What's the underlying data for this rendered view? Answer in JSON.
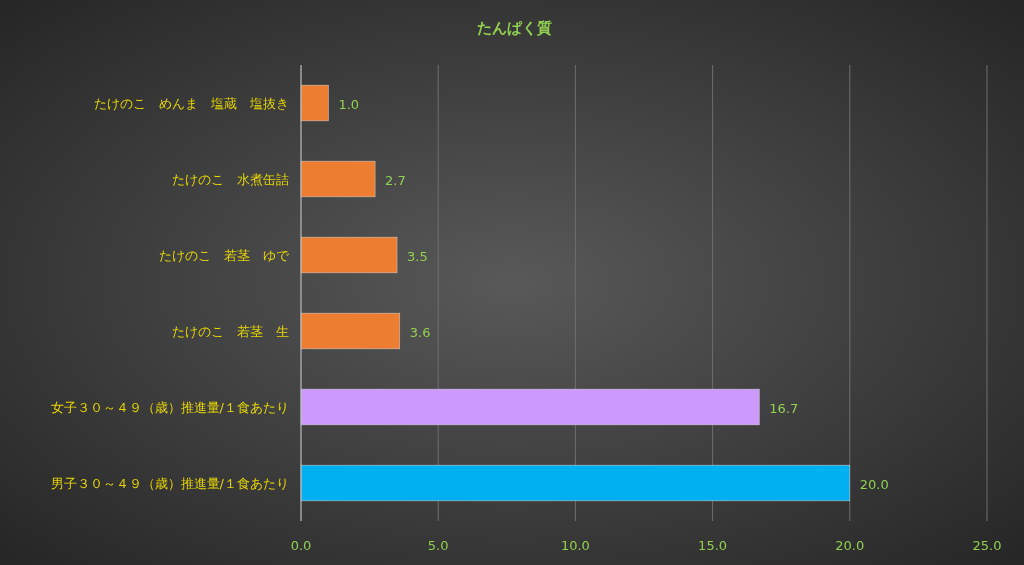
{
  "chart_data": {
    "type": "bar",
    "orientation": "horizontal",
    "title": "たんぱく質",
    "categories": [
      "たけのこ　めんま　塩蔵　塩抜き",
      "たけのこ　水煮缶詰",
      "たけのこ　若茎　ゆで",
      "たけのこ　若茎　生",
      "女子３０～４９（歳）推進量/１食あたり",
      "男子３０～４９（歳）推進量/１食あたり"
    ],
    "values": [
      1.0,
      2.7,
      3.5,
      3.6,
      16.7,
      20.0
    ],
    "value_labels": [
      "1.0",
      "2.7",
      "3.5",
      "3.6",
      "16.7",
      "20.0"
    ],
    "colors": [
      "#ed7d31",
      "#ed7d31",
      "#ed7d31",
      "#ed7d31",
      "#cc99ff",
      "#00b0f0"
    ],
    "xlim": [
      0,
      25
    ],
    "xticks": [
      {
        "value": 0,
        "label": "0.0"
      },
      {
        "value": 5,
        "label": "5.0"
      },
      {
        "value": 10,
        "label": "10.0"
      },
      {
        "value": 15,
        "label": "15.0"
      },
      {
        "value": 20,
        "label": "20.0"
      },
      {
        "value": 25,
        "label": "25.0"
      }
    ],
    "grid": "x"
  }
}
